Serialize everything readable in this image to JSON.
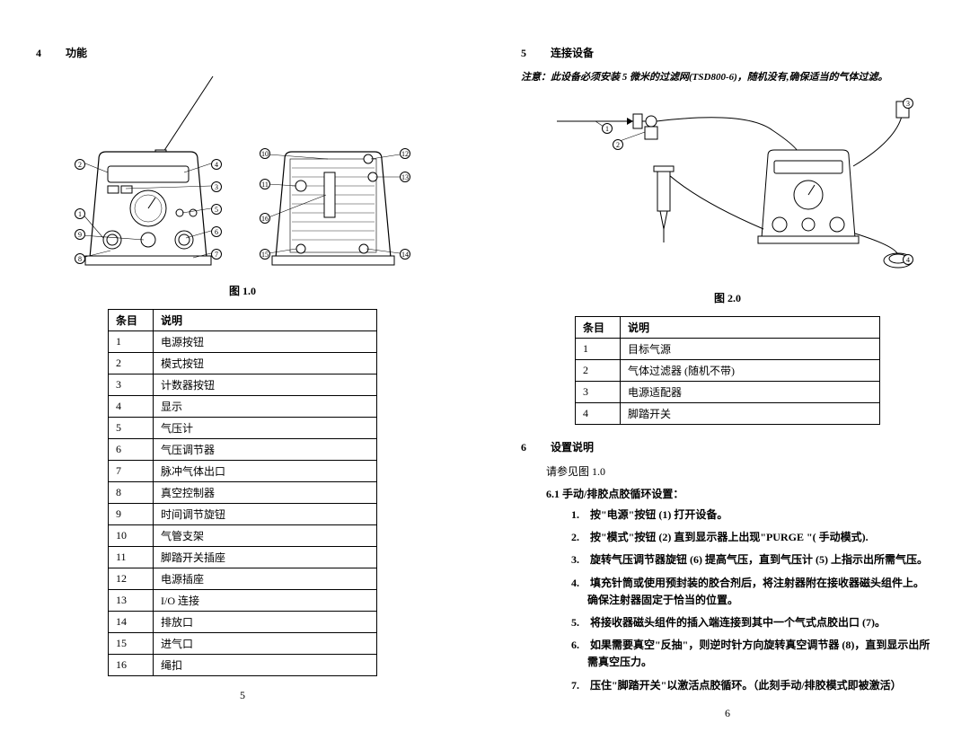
{
  "left": {
    "section_num": "4",
    "section_title": "功能",
    "figure_caption": "图 1.0",
    "page_num": "5",
    "table": {
      "h1": "条目",
      "h2": "说明",
      "rows": [
        [
          "1",
          "电源按钮"
        ],
        [
          "2",
          "模式按钮"
        ],
        [
          "3",
          "计数器按钮"
        ],
        [
          "4",
          "显示"
        ],
        [
          "5",
          "气压计"
        ],
        [
          "6",
          "气压调节器"
        ],
        [
          "7",
          "脉冲气体出口"
        ],
        [
          "8",
          "真空控制器"
        ],
        [
          "9",
          "时间调节旋钮"
        ],
        [
          "10",
          "气管支架"
        ],
        [
          "11",
          "脚踏开关插座"
        ],
        [
          "12",
          "电源插座"
        ],
        [
          "13",
          "I/O 连接"
        ],
        [
          "14",
          "排放口"
        ],
        [
          "15",
          "进气口"
        ],
        [
          "16",
          "绳扣"
        ]
      ]
    },
    "front_callouts": [
      "1",
      "2",
      "3",
      "4",
      "5",
      "6",
      "7",
      "8",
      "9"
    ],
    "back_callouts": [
      "10",
      "11",
      "12",
      "13",
      "14",
      "15",
      "16"
    ]
  },
  "right": {
    "section5_num": "5",
    "section5_title": "连接设备",
    "caution": "注意：此设备必须安装 5 微米的过滤网(TSD800-6)，随机没有,确保适当的气体过滤。",
    "figure_caption": "图 2.0",
    "page_num": "6",
    "table": {
      "h1": "条目",
      "h2": "说明",
      "rows": [
        [
          "1",
          "目标气源"
        ],
        [
          "2",
          "气体过滤器 (随机不带)"
        ],
        [
          "3",
          "电源适配器"
        ],
        [
          "4",
          "脚踏开关"
        ]
      ]
    },
    "section6_num": "6",
    "section6_title": "设置说明",
    "ref_line": "请参见图 1.0",
    "sub61": "6.1 手动/排胶点胶循环设置：",
    "steps": [
      "1.　按\"电源\"按钮 (1) 打开设备。",
      "2.　按\"模式\"按钮 (2) 直到显示器上出现\"PURGE \"( 手动模式).",
      "3.　旋转气压调节器旋钮 (6) 提高气压，直到气压计 (5) 上指示出所需气压。",
      "4.　填充针筒或使用预封装的胶合剂后，将注射器附在接收器磁头组件上。确保注射器固定于恰当的位置。",
      "5.　将接收器磁头组件的插入端连接到其中一个气式点胶出口 (7)。",
      "6.　如果需要真空\"反抽\"，则逆时针方向旋转真空调节器 (8)，直到显示出所需真空压力。",
      "7.　压住\"脚踏开关\"以激活点胶循环。（此刻手动/排胶模式即被激活）"
    ],
    "setup_callouts": [
      "1",
      "2",
      "3",
      "4"
    ]
  }
}
